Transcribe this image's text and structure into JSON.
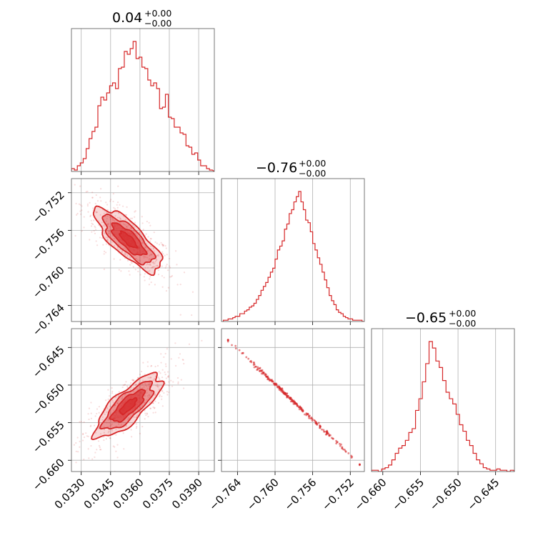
{
  "colors": {
    "main": "#d62728",
    "grid": "#b0b0b0",
    "frame": "#555555"
  },
  "chart_data": {
    "type": "corner",
    "grid": true,
    "parameters": [
      {
        "title_value": "0.04",
        "title_plus": "+0.00",
        "title_minus": "−0.00",
        "range": [
          0.0325,
          0.0398
        ],
        "ticks": [
          0.033,
          0.0345,
          0.036,
          0.0375,
          0.039
        ],
        "tick_labels": [
          "0.0330",
          "0.0345",
          "0.0360",
          "0.0375",
          "0.0390"
        ],
        "median": 0.0353,
        "sigma": 0.00085,
        "histogram": {
          "bins": [
            0.0325,
            0.03265,
            0.0328,
            0.03295,
            0.0331,
            0.03325,
            0.0334,
            0.03355,
            0.0337,
            0.03385,
            0.034,
            0.03415,
            0.0343,
            0.03445,
            0.0346,
            0.03475,
            0.0349,
            0.03505,
            0.0352,
            0.03535,
            0.0355,
            0.03565,
            0.0358,
            0.03595,
            0.0361,
            0.03625,
            0.0364,
            0.03655,
            0.0367,
            0.03685,
            0.037,
            0.03715,
            0.0373,
            0.03745,
            0.0376,
            0.03775,
            0.0379,
            0.03805,
            0.0382,
            0.03835,
            0.0385,
            0.03865,
            0.0388,
            0.03895,
            0.0391,
            0.03925,
            0.0394,
            0.03955,
            0.0397
          ],
          "counts": [
            2,
            1,
            4,
            6,
            9,
            16,
            23,
            28,
            31,
            46,
            52,
            50,
            55,
            60,
            62,
            58,
            72,
            73,
            84,
            82,
            86,
            91,
            79,
            80,
            73,
            72,
            64,
            60,
            62,
            58,
            44,
            45,
            54,
            38,
            37,
            31,
            31,
            27,
            26,
            18,
            17,
            12,
            13,
            8,
            4,
            4,
            2,
            1
          ]
        }
      },
      {
        "title_value": "−0.76",
        "title_plus": "+0.00",
        "title_minus": "−0.00",
        "range": [
          -0.7657,
          -0.7505
        ],
        "ticks": [
          -0.764,
          -0.76,
          -0.756,
          -0.752
        ],
        "tick_labels": [
          "−0.764",
          "−0.760",
          "−0.756",
          "−0.752"
        ],
        "median": -0.757,
        "sigma": 0.0017,
        "histogram": {
          "bins": [
            -0.7655,
            -0.76525,
            -0.765,
            -0.76475,
            -0.7645,
            -0.76425,
            -0.764,
            -0.76375,
            -0.7635,
            -0.76325,
            -0.763,
            -0.76275,
            -0.7625,
            -0.76225,
            -0.762,
            -0.76175,
            -0.7615,
            -0.76125,
            -0.761,
            -0.76075,
            -0.7605,
            -0.76025,
            -0.76,
            -0.75975,
            -0.7595,
            -0.75925,
            -0.759,
            -0.75875,
            -0.7585,
            -0.75825,
            -0.758,
            -0.75775,
            -0.7575,
            -0.75725,
            -0.757,
            -0.75675,
            -0.7565,
            -0.75625,
            -0.756,
            -0.75575,
            -0.7555,
            -0.75525,
            -0.755,
            -0.75475,
            -0.7545,
            -0.75425,
            -0.754,
            -0.75375,
            -0.7535,
            -0.75325,
            -0.753,
            -0.75275,
            -0.7525,
            -0.75225,
            -0.752,
            -0.75175,
            -0.7515,
            -0.75125,
            -0.751,
            -0.75075,
            -0.7505
          ],
          "counts": [
            1,
            1,
            2,
            2,
            3,
            4,
            4,
            6,
            6,
            8,
            9,
            11,
            12,
            14,
            17,
            20,
            24,
            27,
            30,
            34,
            38,
            41,
            48,
            55,
            58,
            62,
            71,
            75,
            83,
            86,
            92,
            96,
            100,
            92,
            86,
            78,
            76,
            69,
            60,
            55,
            49,
            44,
            38,
            32,
            26,
            20,
            16,
            13,
            9,
            7,
            6,
            4,
            3,
            2,
            2,
            1,
            1,
            1,
            1,
            0
          ]
        }
      },
      {
        "title_value": "−0.65",
        "title_plus": "+0.00",
        "title_minus": "−0.00",
        "range": [
          -0.6615,
          -0.6425
        ],
        "ticks": [
          -0.66,
          -0.655,
          -0.65,
          -0.645
        ],
        "tick_labels": [
          "−0.660",
          "−0.655",
          "−0.650",
          "−0.645"
        ],
        "median": -0.6528,
        "sigma": 0.0021,
        "histogram": {
          "bins": [
            -0.6615,
            -0.66105,
            -0.6606,
            -0.66015,
            -0.6597,
            -0.65925,
            -0.6588,
            -0.65835,
            -0.6579,
            -0.65745,
            -0.657,
            -0.65655,
            -0.6561,
            -0.65565,
            -0.6552,
            -0.65475,
            -0.6543,
            -0.65385,
            -0.6534,
            -0.65295,
            -0.6525,
            -0.65205,
            -0.6516,
            -0.65115,
            -0.6507,
            -0.65025,
            -0.6498,
            -0.64935,
            -0.6489,
            -0.64845,
            -0.648,
            -0.64755,
            -0.6471,
            -0.64665,
            -0.6462,
            -0.64575,
            -0.6453,
            -0.64485,
            -0.6444,
            -0.64395,
            -0.6435,
            -0.64305,
            -0.6426
          ],
          "counts": [
            1,
            1,
            0,
            2,
            3,
            5,
            9,
            14,
            18,
            20,
            24,
            30,
            33,
            47,
            56,
            69,
            83,
            100,
            95,
            85,
            80,
            70,
            61,
            56,
            52,
            44,
            36,
            31,
            24,
            20,
            14,
            9,
            6,
            3,
            2,
            1,
            1,
            2,
            1,
            1,
            0,
            1
          ]
        }
      }
    ],
    "pairs": [
      {
        "x": 0,
        "y": 1,
        "style": "contour",
        "center": [
          0.0354,
          -0.757
        ],
        "correlation": -0.78,
        "levels_sigma": [
          2.0,
          1.5,
          1.0,
          0.5
        ]
      },
      {
        "x": 0,
        "y": 2,
        "style": "contour",
        "center": [
          0.0354,
          -0.6528
        ],
        "correlation": 0.78,
        "levels_sigma": [
          2.0,
          1.5,
          1.0,
          0.5
        ]
      },
      {
        "x": 1,
        "y": 2,
        "style": "line",
        "from": [
          -0.765,
          -0.644
        ],
        "to": [
          -0.751,
          -0.6605
        ],
        "correlation": -0.999
      }
    ]
  }
}
